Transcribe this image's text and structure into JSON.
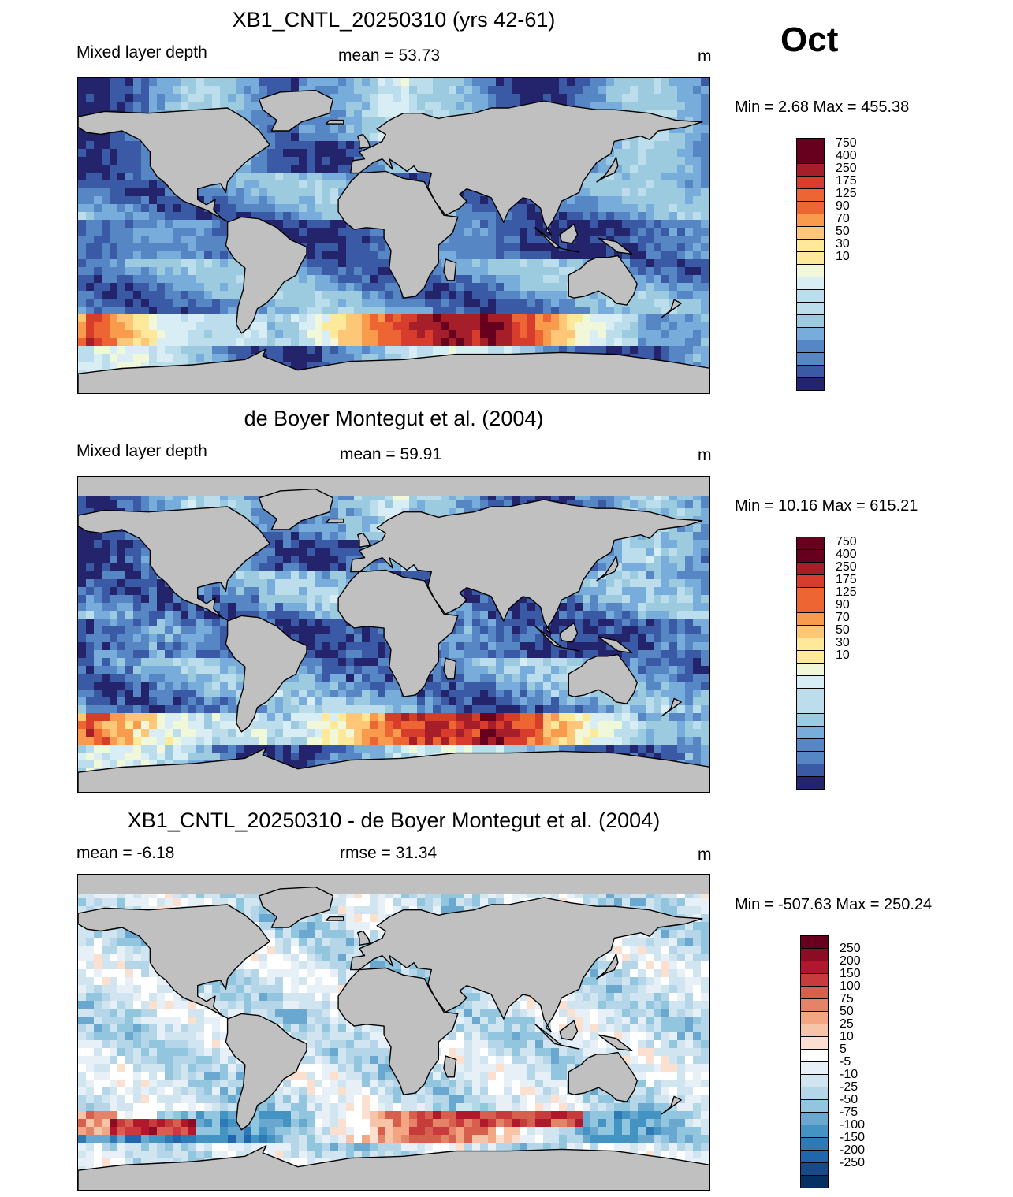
{
  "month": "Oct",
  "panels": [
    {
      "id": "model",
      "title": "XB1_CNTL_20250310 (yrs 42-61)",
      "left_text": "Mixed layer depth",
      "center_text": "mean =  53.73",
      "right_text": "m",
      "minmax": "Min =   2.68 Max = 455.38",
      "colorbar_labels": [
        "750",
        "400",
        "250",
        "175",
        "125",
        "90",
        "70",
        "50",
        "30",
        "10"
      ],
      "field_pattern": "model"
    },
    {
      "id": "obs",
      "title": "de Boyer Montegut et al. (2004)",
      "left_text": "Mixed layer depth",
      "center_text": "mean =  59.91",
      "right_text": "m",
      "minmax": "Min =  10.16 Max = 615.21",
      "colorbar_labels": [
        "750",
        "400",
        "250",
        "175",
        "125",
        "90",
        "70",
        "50",
        "30",
        "10"
      ],
      "field_pattern": "obs"
    },
    {
      "id": "diff",
      "title": "XB1_CNTL_20250310 - de Boyer Montegut et al. (2004)",
      "left_text": "mean =  -6.18",
      "center_text": "rmse =  31.34",
      "right_text": "m",
      "minmax": "Min = -507.63 Max = 250.24",
      "colorbar_labels": [
        "250",
        "200",
        "150",
        "100",
        "75",
        "50",
        "25",
        "10",
        "5",
        "-5",
        "-10",
        "-25",
        "-50",
        "-75",
        "-100",
        "-150",
        "-200",
        "-250"
      ],
      "field_pattern": "diff"
    }
  ],
  "colors": {
    "land": "#c0c0c0",
    "coast": "#000000",
    "mld_scale": [
      "#67001f",
      "#a51e2a",
      "#d73c2c",
      "#ee6534",
      "#f89b4c",
      "#fdc777",
      "#fee99a",
      "#f1f8d9",
      "#d8eef4",
      "#bcdeec",
      "#9ccbe0",
      "#78addb",
      "#5686c3",
      "#3b5aa6",
      "#23246b"
    ],
    "diff_scale": [
      "#67001f",
      "#8c0b25",
      "#b2182b",
      "#c83b3d",
      "#d6604d",
      "#e58368",
      "#f4a582",
      "#f8c4a8",
      "#fbe0d0",
      "#ffffff",
      "#e7f0f6",
      "#d1e5f0",
      "#b4d6e8",
      "#92c5de",
      "#6ba8cf",
      "#4393c3",
      "#2f79b5",
      "#2166ac",
      "#174a87",
      "#053061"
    ]
  }
}
